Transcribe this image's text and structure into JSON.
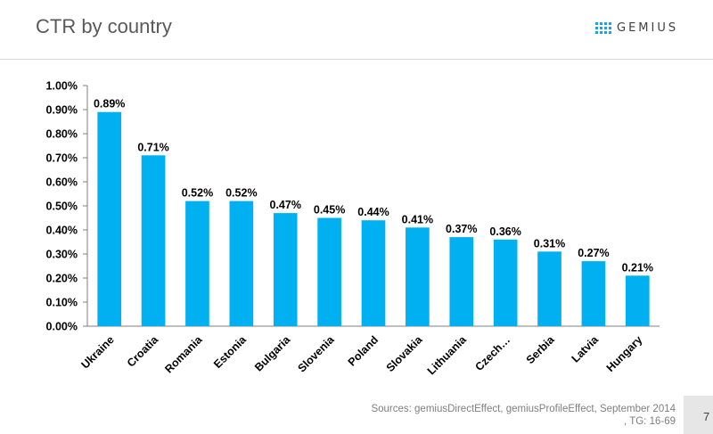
{
  "header": {
    "title": "CTR by country",
    "logo_text": "GEMIUS"
  },
  "footer": {
    "source_line1": "Sources: gemiusDirectEffect,  gemiusProfileEffect, September 2014",
    "source_line2": ", TG: 16-69",
    "page_number": "7"
  },
  "colors": {
    "bar": "#00B0F0",
    "logo_accent": "#1aa3de"
  },
  "chart_data": {
    "type": "bar",
    "title": "CTR by country",
    "xlabel": "",
    "ylabel": "",
    "categories": [
      "Ukraine",
      "Croatia",
      "Romania",
      "Estonia",
      "Bulgaria",
      "Slovenia",
      "Poland",
      "Slovakia",
      "Lithuania",
      "Czech…",
      "Serbia",
      "Latvia",
      "Hungary"
    ],
    "values": [
      0.89,
      0.71,
      0.52,
      0.52,
      0.47,
      0.45,
      0.44,
      0.41,
      0.37,
      0.36,
      0.31,
      0.27,
      0.21
    ],
    "data_labels": [
      "0.89%",
      "0.71%",
      "0.52%",
      "0.52%",
      "0.47%",
      "0.45%",
      "0.44%",
      "0.41%",
      "0.37%",
      "0.36%",
      "0.31%",
      "0.27%",
      "0.21%"
    ],
    "ylim": [
      0,
      1.0
    ],
    "y_ticks": [
      "0.00%",
      "0.10%",
      "0.20%",
      "0.30%",
      "0.40%",
      "0.50%",
      "0.60%",
      "0.70%",
      "0.80%",
      "0.90%",
      "1.00%"
    ],
    "grid": false,
    "legend": "none"
  }
}
